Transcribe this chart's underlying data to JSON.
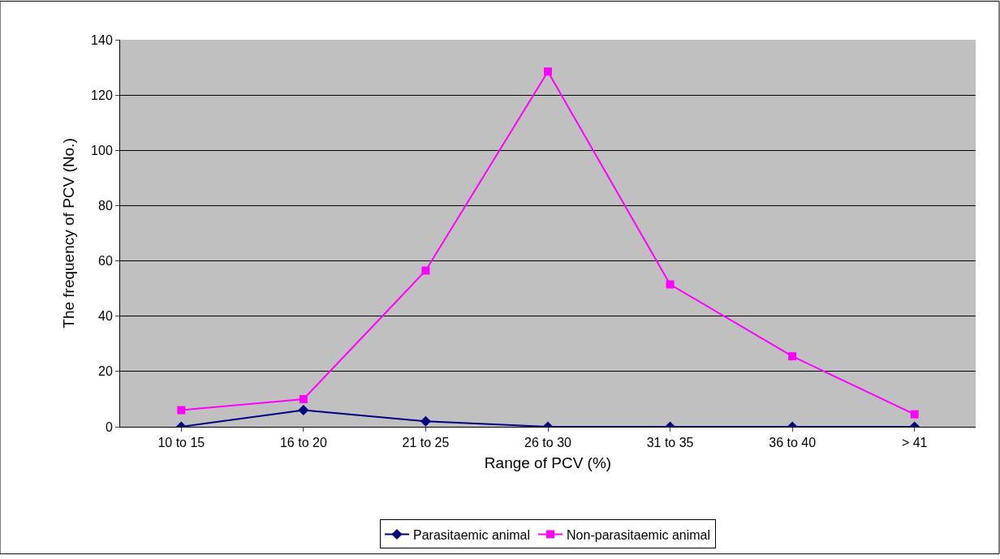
{
  "chart_data": {
    "type": "line",
    "xlabel": "Range of PCV (%)",
    "ylabel": "The frequency of PCV (No.)",
    "categories": [
      "10 to 15",
      "16 to 20",
      "21 to 25",
      "26 to 30",
      "31 to 35",
      "36 to 40",
      "> 41"
    ],
    "series": [
      {
        "name": "Parasitaemic animal",
        "color": "#000080",
        "marker": "diamond",
        "values": [
          0,
          6,
          2,
          0,
          0,
          0,
          0
        ]
      },
      {
        "name": "Non-parasitaemic animal",
        "color": "#ff00ff",
        "marker": "square",
        "values": [
          6,
          10,
          56.5,
          128.5,
          51.5,
          25.5,
          4.5
        ]
      }
    ],
    "ylim": [
      0,
      140
    ],
    "yticks": [
      0,
      20,
      40,
      60,
      80,
      100,
      120,
      140
    ],
    "grid": "y",
    "legend": "bottom",
    "line_style": "solid"
  }
}
